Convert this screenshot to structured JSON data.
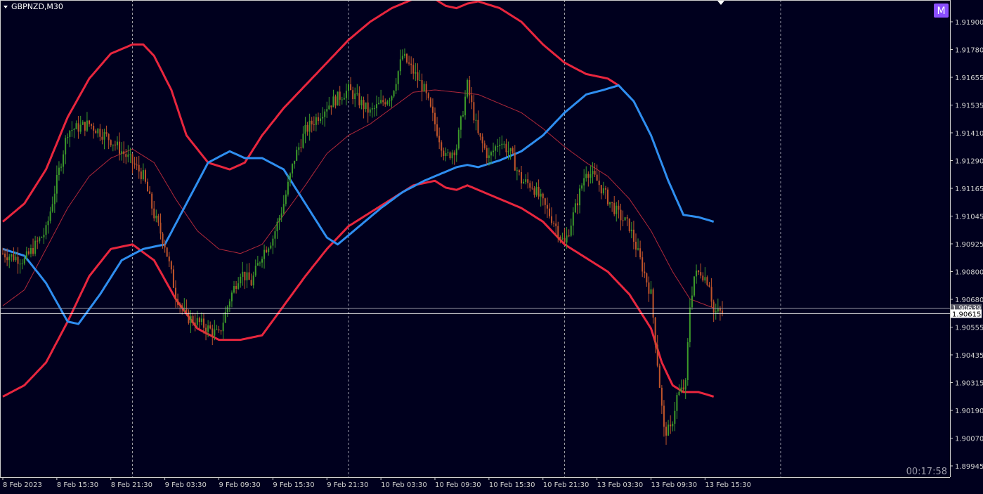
{
  "header": {
    "symbol_label": "GBPNZD,M30",
    "dropdown_icon": "triangle-down-icon",
    "badge_text": "M"
  },
  "timer": "00:17:58",
  "colors": {
    "background": "#00001e",
    "axis": "#cfcfcf",
    "grid": "#9a9aa8",
    "bull": "#3c9a2a",
    "bear": "#c0542a",
    "upper_band": "#e8263e",
    "lower_band": "#e8263e",
    "middle_band": "#b0283a",
    "blue_line": "#2f8ef0",
    "price_line": "#ffffff",
    "bid_line": "#9a9aa8",
    "badge": "#8a4fff"
  },
  "chart_data": {
    "type": "candlestick",
    "symbol": "GBPNZD",
    "timeframe": "M30",
    "ylim": [
      1.8993,
      1.9199
    ],
    "y_ticks": [
      "1.91900",
      "1.91780",
      "1.91655",
      "1.91535",
      "1.91410",
      "1.91290",
      "1.91165",
      "1.91045",
      "1.90925",
      "1.90800",
      "1.90680",
      "1.90555",
      "1.90435",
      "1.90315",
      "1.90190",
      "1.90070",
      "1.89945"
    ],
    "x_ticks": [
      "8 Feb 2023",
      "8 Feb 15:30",
      "8 Feb 21:30",
      "9 Feb 03:30",
      "9 Feb 09:30",
      "9 Feb 15:30",
      "9 Feb 21:30",
      "10 Feb 03:30",
      "10 Feb 09:30",
      "10 Feb 15:30",
      "10 Feb 21:30",
      "13 Feb 03:30",
      "13 Feb 09:30",
      "13 Feb 15:30"
    ],
    "x_tick_bars": [
      0,
      25,
      50,
      75,
      100,
      125,
      150,
      175,
      200,
      225,
      250,
      275,
      300,
      325
    ],
    "period_separators_bars": [
      60,
      160,
      260,
      360
    ],
    "bar_count": 334,
    "current_price": "1.90615",
    "bid_price": "1.90639",
    "current_price_value": 1.90615,
    "bid_price_value": 1.90639,
    "candles_keypoints": [
      [
        0,
        1.9088
      ],
      [
        10,
        1.9085
      ],
      [
        20,
        1.9098
      ],
      [
        30,
        1.9142
      ],
      [
        40,
        1.9145
      ],
      [
        50,
        1.9138
      ],
      [
        60,
        1.9128
      ],
      [
        65,
        1.9122
      ],
      [
        70,
        1.9105
      ],
      [
        75,
        1.9092
      ],
      [
        80,
        1.907
      ],
      [
        85,
        1.906
      ],
      [
        90,
        1.9058
      ],
      [
        100,
        1.9052
      ],
      [
        105,
        1.9068
      ],
      [
        110,
        1.908
      ],
      [
        115,
        1.9075
      ],
      [
        120,
        1.9088
      ],
      [
        125,
        1.9095
      ],
      [
        130,
        1.911
      ],
      [
        135,
        1.913
      ],
      [
        140,
        1.9142
      ],
      [
        150,
        1.9153
      ],
      [
        160,
        1.916
      ],
      [
        170,
        1.915
      ],
      [
        180,
        1.9158
      ],
      [
        185,
        1.9175
      ],
      [
        190,
        1.9168
      ],
      [
        195,
        1.916
      ],
      [
        200,
        1.9145
      ],
      [
        205,
        1.913
      ],
      [
        210,
        1.9135
      ],
      [
        215,
        1.9162
      ],
      [
        220,
        1.914
      ],
      [
        225,
        1.913
      ],
      [
        230,
        1.9138
      ],
      [
        235,
        1.9132
      ],
      [
        240,
        1.912
      ],
      [
        245,
        1.9118
      ],
      [
        250,
        1.911
      ],
      [
        255,
        1.9102
      ],
      [
        260,
        1.9092
      ],
      [
        265,
        1.9108
      ],
      [
        270,
        1.9125
      ],
      [
        275,
        1.912
      ],
      [
        280,
        1.9112
      ],
      [
        285,
        1.9105
      ],
      [
        290,
        1.91
      ],
      [
        295,
        1.9085
      ],
      [
        300,
        1.907
      ],
      [
        303,
        1.904
      ],
      [
        306,
        1.901
      ],
      [
        309,
        1.901
      ],
      [
        312,
        1.9025
      ],
      [
        316,
        1.903
      ],
      [
        318,
        1.9065
      ],
      [
        320,
        1.9078
      ],
      [
        323,
        1.908
      ],
      [
        327,
        1.9075
      ],
      [
        329,
        1.9062
      ]
    ],
    "upper_band_keypoints": [
      [
        0,
        1.9102
      ],
      [
        10,
        1.911
      ],
      [
        20,
        1.9125
      ],
      [
        30,
        1.9148
      ],
      [
        40,
        1.9165
      ],
      [
        50,
        1.9176
      ],
      [
        60,
        1.918
      ],
      [
        65,
        1.918
      ],
      [
        70,
        1.9175
      ],
      [
        78,
        1.916
      ],
      [
        85,
        1.914
      ],
      [
        95,
        1.9128
      ],
      [
        105,
        1.9125
      ],
      [
        112,
        1.9128
      ],
      [
        120,
        1.914
      ],
      [
        130,
        1.9152
      ],
      [
        140,
        1.9162
      ],
      [
        150,
        1.9172
      ],
      [
        160,
        1.9182
      ],
      [
        170,
        1.919
      ],
      [
        180,
        1.9196
      ],
      [
        190,
        1.92
      ],
      [
        200,
        1.92
      ],
      [
        205,
        1.9197
      ],
      [
        210,
        1.9196
      ],
      [
        215,
        1.9198
      ],
      [
        220,
        1.9199
      ],
      [
        230,
        1.9196
      ],
      [
        240,
        1.919
      ],
      [
        250,
        1.918
      ],
      [
        260,
        1.9172
      ],
      [
        270,
        1.9167
      ],
      [
        280,
        1.9165
      ],
      [
        285,
        1.9162
      ]
    ],
    "blue_line_keypoints": [
      [
        0,
        1.909
      ],
      [
        10,
        1.9087
      ],
      [
        20,
        1.9075
      ],
      [
        30,
        1.9058
      ],
      [
        35,
        1.9057
      ],
      [
        45,
        1.907
      ],
      [
        55,
        1.9085
      ],
      [
        65,
        1.909
      ],
      [
        75,
        1.9092
      ],
      [
        85,
        1.911
      ],
      [
        95,
        1.9128
      ],
      [
        105,
        1.9133
      ],
      [
        112,
        1.913
      ],
      [
        120,
        1.913
      ],
      [
        130,
        1.9125
      ],
      [
        140,
        1.911
      ],
      [
        150,
        1.9095
      ],
      [
        155,
        1.9092
      ],
      [
        165,
        1.91
      ],
      [
        175,
        1.9108
      ],
      [
        185,
        1.9115
      ],
      [
        195,
        1.912
      ],
      [
        205,
        1.9124
      ],
      [
        210,
        1.9126
      ],
      [
        215,
        1.9127
      ],
      [
        220,
        1.9126
      ],
      [
        230,
        1.9129
      ],
      [
        240,
        1.9133
      ],
      [
        250,
        1.914
      ],
      [
        260,
        1.915
      ],
      [
        270,
        1.9158
      ],
      [
        278,
        1.916
      ],
      [
        285,
        1.9162
      ],
      [
        292,
        1.9155
      ],
      [
        300,
        1.914
      ],
      [
        308,
        1.912
      ],
      [
        315,
        1.9105
      ],
      [
        322,
        1.9104
      ],
      [
        329,
        1.9102
      ]
    ],
    "lower_band_keypoints": [
      [
        0,
        1.9025
      ],
      [
        10,
        1.903
      ],
      [
        20,
        1.904
      ],
      [
        30,
        1.9058
      ],
      [
        40,
        1.9078
      ],
      [
        50,
        1.909
      ],
      [
        60,
        1.9092
      ],
      [
        70,
        1.9085
      ],
      [
        80,
        1.9068
      ],
      [
        90,
        1.9055
      ],
      [
        100,
        1.905
      ],
      [
        110,
        1.905
      ],
      [
        120,
        1.9052
      ],
      [
        130,
        1.9065
      ],
      [
        140,
        1.9078
      ],
      [
        150,
        1.909
      ],
      [
        160,
        1.91
      ],
      [
        170,
        1.9106
      ],
      [
        180,
        1.9112
      ],
      [
        190,
        1.9118
      ],
      [
        200,
        1.912
      ],
      [
        205,
        1.9117
      ],
      [
        210,
        1.9116
      ],
      [
        215,
        1.9118
      ],
      [
        220,
        1.9116
      ],
      [
        230,
        1.9112
      ],
      [
        240,
        1.9108
      ],
      [
        250,
        1.9102
      ],
      [
        260,
        1.9092
      ],
      [
        270,
        1.9086
      ],
      [
        280,
        1.908
      ],
      [
        290,
        1.907
      ],
      [
        300,
        1.9055
      ],
      [
        305,
        1.904
      ],
      [
        310,
        1.903
      ],
      [
        315,
        1.9027
      ],
      [
        322,
        1.9027
      ],
      [
        329,
        1.9025
      ]
    ],
    "middle_band_keypoints": [
      [
        0,
        1.9065
      ],
      [
        10,
        1.9072
      ],
      [
        20,
        1.909
      ],
      [
        30,
        1.9108
      ],
      [
        40,
        1.9122
      ],
      [
        50,
        1.913
      ],
      [
        60,
        1.9134
      ],
      [
        70,
        1.9128
      ],
      [
        80,
        1.9112
      ],
      [
        90,
        1.9098
      ],
      [
        100,
        1.909
      ],
      [
        110,
        1.9088
      ],
      [
        120,
        1.9092
      ],
      [
        130,
        1.9105
      ],
      [
        140,
        1.9118
      ],
      [
        150,
        1.9132
      ],
      [
        160,
        1.914
      ],
      [
        170,
        1.9145
      ],
      [
        180,
        1.9152
      ],
      [
        190,
        1.9159
      ],
      [
        200,
        1.916
      ],
      [
        210,
        1.9159
      ],
      [
        220,
        1.9158
      ],
      [
        230,
        1.9154
      ],
      [
        240,
        1.915
      ],
      [
        250,
        1.9143
      ],
      [
        260,
        1.9135
      ],
      [
        270,
        1.9128
      ],
      [
        280,
        1.9122
      ],
      [
        290,
        1.9112
      ],
      [
        300,
        1.9098
      ],
      [
        310,
        1.908
      ],
      [
        318,
        1.9068
      ],
      [
        329,
        1.9064
      ]
    ]
  }
}
